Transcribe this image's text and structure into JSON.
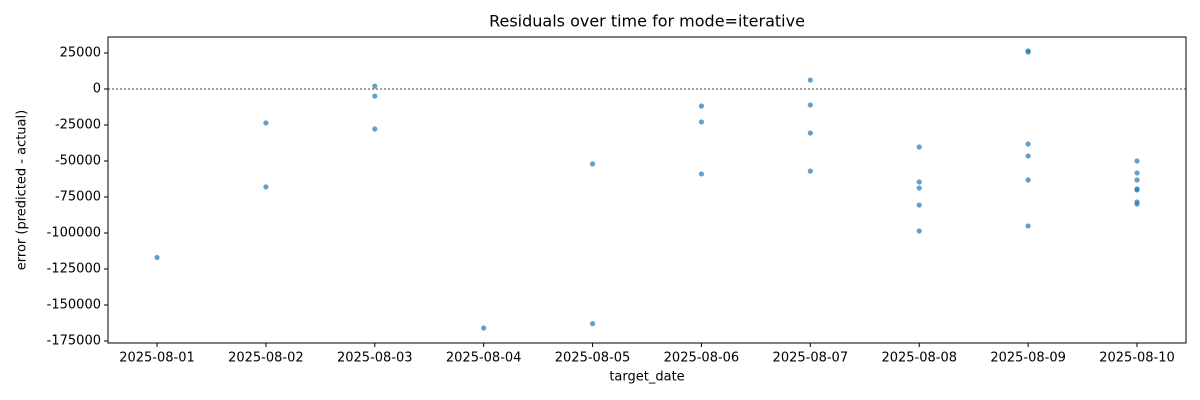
{
  "chart_data": {
    "type": "scatter",
    "title": "Residuals over time for mode=iterative",
    "xlabel": "target_date",
    "ylabel": "error (predicted - actual)",
    "x": [
      "2025-08-01",
      "2025-08-02",
      "2025-08-02",
      "2025-08-03",
      "2025-08-03",
      "2025-08-03",
      "2025-08-04",
      "2025-08-05",
      "2025-08-05",
      "2025-08-06",
      "2025-08-06",
      "2025-08-06",
      "2025-08-07",
      "2025-08-07",
      "2025-08-07",
      "2025-08-07",
      "2025-08-08",
      "2025-08-08",
      "2025-08-08",
      "2025-08-08",
      "2025-08-08",
      "2025-08-09",
      "2025-08-09",
      "2025-08-09",
      "2025-08-09",
      "2025-08-09",
      "2025-08-09",
      "2025-08-10",
      "2025-08-10",
      "2025-08-10",
      "2025-08-10",
      "2025-08-10",
      "2025-08-10",
      "2025-08-10"
    ],
    "y": [
      -117000,
      -23600,
      -68000,
      2000,
      -4900,
      -27800,
      -166000,
      -52000,
      -163000,
      -11800,
      -22900,
      -59000,
      6200,
      -11100,
      -30600,
      -57000,
      -40300,
      -64600,
      -68800,
      -80600,
      -98600,
      26400,
      25700,
      -38200,
      -46500,
      -63200,
      -95100,
      -50000,
      -58300,
      -63200,
      -69400,
      -70100,
      -78500,
      -79900
    ],
    "color": "#1f77b4",
    "ylim": [
      -176400,
      36100
    ],
    "yticks": [
      25000,
      0,
      -25000,
      -50000,
      -75000,
      -100000,
      -125000,
      -150000,
      -175000
    ],
    "xticks": [
      "2025-08-01",
      "2025-08-02",
      "2025-08-03",
      "2025-08-04",
      "2025-08-05",
      "2025-08-06",
      "2025-08-07",
      "2025-08-08",
      "2025-08-09",
      "2025-08-10"
    ],
    "hline": 0
  }
}
